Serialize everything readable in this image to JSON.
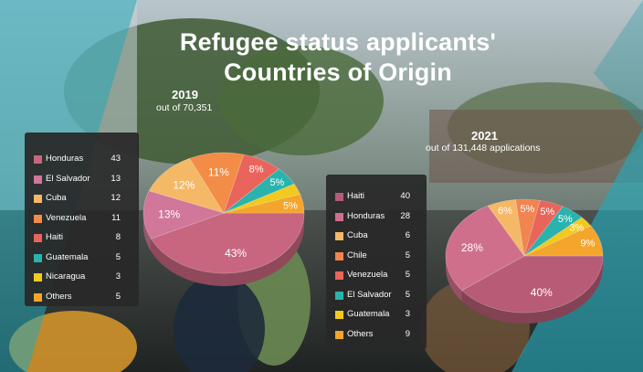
{
  "title_line1": "Refugee status applicants'",
  "title_line2": "Countries of Origin",
  "panels": {
    "y2019": {
      "year": "2019",
      "subtitle": "out of 70,351"
    },
    "y2021": {
      "year": "2021",
      "subtitle": "out of 131,448 applications"
    }
  },
  "colors": {
    "Honduras": "#c8667f",
    "El Salvador": "#d0779a",
    "Cuba": "#f5b866",
    "Venezuela": "#f28c46",
    "Haiti": "#e9655c",
    "Guatemala": "#2ab3ad",
    "Nicaragua": "#f2c91e",
    "Others": "#f4a52c",
    "Chile": "#f0854f",
    "Haiti2021": "#b85b76",
    "Honduras2021": "#d06f8c",
    "ElSalvador2021": "#2ab3ad",
    "Guatemala2021": "#f2c91e"
  },
  "chart_data": [
    {
      "type": "pie",
      "title": "2019",
      "subtitle": "out of 70,351",
      "legend": [
        {
          "label": "Honduras",
          "value": "43",
          "color": "#c8667f"
        },
        {
          "label": "El Salvador",
          "value": "13",
          "color": "#d0779a"
        },
        {
          "label": "Cuba",
          "value": "12",
          "color": "#f5b866"
        },
        {
          "label": "Venezuela",
          "value": "11",
          "color": "#f28c46"
        },
        {
          "label": "Haiti",
          "value": "8",
          "color": "#e9655c"
        },
        {
          "label": "Guatemala",
          "value": "5",
          "color": "#2ab3ad"
        },
        {
          "label": "Nicaragua",
          "value": "3",
          "color": "#f2c91e"
        },
        {
          "label": "Others",
          "value": "5",
          "color": "#f4a52c"
        }
      ],
      "slices": [
        {
          "label": "Honduras",
          "value": 43,
          "text": "43%",
          "color": "#c8667f"
        },
        {
          "label": "El Salvador",
          "value": 13,
          "text": "13%",
          "color": "#d0779a"
        },
        {
          "label": "Cuba",
          "value": 12,
          "text": "12%",
          "color": "#f5b866"
        },
        {
          "label": "Venezuela",
          "value": 11,
          "text": "11%",
          "color": "#f28c46"
        },
        {
          "label": "Haiti",
          "value": 8,
          "text": "8%",
          "color": "#e9655c"
        },
        {
          "label": "Guatemala",
          "value": 5,
          "text": "5%",
          "color": "#2ab3ad"
        },
        {
          "label": "Nicaragua",
          "value": 3,
          "text": "",
          "color": "#f2c91e"
        },
        {
          "label": "Others",
          "value": 5,
          "text": "5%",
          "color": "#f4a52c"
        }
      ]
    },
    {
      "type": "pie",
      "title": "2021",
      "subtitle": "out of 131,448 applications",
      "legend": [
        {
          "label": "Haiti",
          "value": "40",
          "color": "#b85b76"
        },
        {
          "label": "Honduras",
          "value": "28",
          "color": "#d06f8c"
        },
        {
          "label": "Cuba",
          "value": "6",
          "color": "#f5b866"
        },
        {
          "label": "Chile",
          "value": "5",
          "color": "#f0854f"
        },
        {
          "label": "Venezuela",
          "value": "5",
          "color": "#e9655c"
        },
        {
          "label": "El Salvador",
          "value": "5",
          "color": "#2ab3ad"
        },
        {
          "label": "Guatemala",
          "value": "3",
          "color": "#f2c91e"
        },
        {
          "label": "Others",
          "value": "9",
          "color": "#f4a52c"
        }
      ],
      "slices": [
        {
          "label": "Haiti",
          "value": 40,
          "text": "40%",
          "color": "#b85b76"
        },
        {
          "label": "Honduras",
          "value": 28,
          "text": "28%",
          "color": "#d06f8c"
        },
        {
          "label": "Cuba",
          "value": 6,
          "text": "6%",
          "color": "#f5b866"
        },
        {
          "label": "Chile",
          "value": 5,
          "text": "5%",
          "color": "#f0854f"
        },
        {
          "label": "Venezuela",
          "value": 5,
          "text": "5%",
          "color": "#e9655c"
        },
        {
          "label": "El Salvador",
          "value": 5,
          "text": "5%",
          "color": "#2ab3ad"
        },
        {
          "label": "Guatemala",
          "value": 3,
          "text": "3%",
          "color": "#f2c91e"
        },
        {
          "label": "Others",
          "value": 9,
          "text": "9%",
          "color": "#f4a52c"
        }
      ]
    }
  ]
}
